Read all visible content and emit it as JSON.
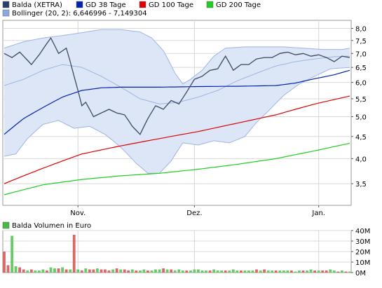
{
  "legend": [
    {
      "label": "Balda (XETRA)",
      "color": "#2a3d6b"
    },
    {
      "label": "GD 38 Tage",
      "color": "#0022aa"
    },
    {
      "label": "GD 100 Tage",
      "color": "#dd0000"
    },
    {
      "label": "GD 200 Tage",
      "color": "#22cc22"
    },
    {
      "label": "Bollinger (20, 2): 6,646996 - 7,149304",
      "color": "#8ea8e0"
    }
  ],
  "volume_label": "Balda Volumen in Euro",
  "volume_legend_color": "#44bb44",
  "colors": {
    "price": "#3a4a62",
    "ma38": "#0022aa",
    "ma100": "#dd0000",
    "ma200": "#22cc22",
    "band_fill": "#dce6f7",
    "band_line": "#9db4e3",
    "grid": "#d8d8d8",
    "vol_up": "#66cc66",
    "vol_down": "#dd6666"
  },
  "chart_data": [
    {
      "type": "line",
      "title": "",
      "x_tick_labels": [
        "Nov.",
        "Dez.",
        "Jan."
      ],
      "y_tick_labels": [
        "8,0",
        "7,5",
        "7,0",
        "6,5",
        "6,0",
        "5,5",
        "5,0",
        "4,5",
        "4,0",
        "3,5"
      ],
      "y_ticks": [
        8.0,
        7.5,
        7.0,
        6.5,
        6.0,
        5.5,
        5.0,
        4.5,
        4.0,
        3.5
      ],
      "y_scale": "log",
      "ylim": [
        3.12,
        8.35
      ],
      "x_count": 90,
      "x_tick_index": [
        19,
        49,
        81
      ],
      "grid": true,
      "legend_position": "top-left",
      "series": [
        {
          "name": "Balda (XETRA)",
          "key": "price",
          "anchors": [
            [
              0,
              7.0
            ],
            [
              2,
              6.85
            ],
            [
              4,
              7.05
            ],
            [
              6,
              6.75
            ],
            [
              7,
              6.6
            ],
            [
              9,
              6.95
            ],
            [
              12,
              7.6
            ],
            [
              14,
              7.0
            ],
            [
              16,
              7.2
            ],
            [
              18,
              6.2
            ],
            [
              20,
              5.3
            ],
            [
              21,
              5.4
            ],
            [
              23,
              5.0
            ],
            [
              25,
              5.1
            ],
            [
              27,
              5.2
            ],
            [
              29,
              5.1
            ],
            [
              31,
              5.05
            ],
            [
              33,
              4.75
            ],
            [
              35,
              4.55
            ],
            [
              37,
              4.95
            ],
            [
              39,
              5.3
            ],
            [
              41,
              5.2
            ],
            [
              43,
              5.45
            ],
            [
              45,
              5.35
            ],
            [
              47,
              5.7
            ],
            [
              49,
              6.1
            ],
            [
              51,
              6.2
            ],
            [
              53,
              6.4
            ],
            [
              55,
              6.45
            ],
            [
              57,
              6.9
            ],
            [
              59,
              6.4
            ],
            [
              61,
              6.6
            ],
            [
              63,
              6.6
            ],
            [
              65,
              6.8
            ],
            [
              67,
              6.85
            ],
            [
              69,
              6.85
            ],
            [
              71,
              7.0
            ],
            [
              73,
              7.05
            ],
            [
              75,
              6.95
            ],
            [
              77,
              7.0
            ],
            [
              79,
              6.9
            ],
            [
              81,
              6.95
            ],
            [
              83,
              6.85
            ],
            [
              85,
              6.7
            ],
            [
              87,
              6.9
            ],
            [
              89,
              6.85
            ]
          ]
        },
        {
          "name": "GD 38 Tage",
          "key": "ma38",
          "anchors": [
            [
              0,
              4.55
            ],
            [
              5,
              4.95
            ],
            [
              10,
              5.25
            ],
            [
              15,
              5.55
            ],
            [
              20,
              5.75
            ],
            [
              25,
              5.83
            ],
            [
              30,
              5.85
            ],
            [
              40,
              5.85
            ],
            [
              50,
              5.87
            ],
            [
              60,
              5.88
            ],
            [
              70,
              5.9
            ],
            [
              75,
              5.98
            ],
            [
              80,
              6.12
            ],
            [
              85,
              6.25
            ],
            [
              89,
              6.4
            ]
          ]
        },
        {
          "name": "GD 100 Tage",
          "key": "ma100",
          "anchors": [
            [
              0,
              3.5
            ],
            [
              10,
              3.8
            ],
            [
              20,
              4.1
            ],
            [
              30,
              4.28
            ],
            [
              40,
              4.45
            ],
            [
              50,
              4.62
            ],
            [
              60,
              4.83
            ],
            [
              70,
              5.05
            ],
            [
              80,
              5.35
            ],
            [
              89,
              5.58
            ]
          ]
        },
        {
          "name": "GD 200 Tage",
          "key": "ma200",
          "anchors": [
            [
              0,
              3.3
            ],
            [
              10,
              3.48
            ],
            [
              20,
              3.58
            ],
            [
              30,
              3.65
            ],
            [
              40,
              3.7
            ],
            [
              50,
              3.78
            ],
            [
              60,
              3.88
            ],
            [
              70,
              4.0
            ],
            [
              80,
              4.17
            ],
            [
              89,
              4.34
            ]
          ]
        },
        {
          "name": "Bollinger (20, 2): 6,646996 - 7,149304",
          "key": "band_upper",
          "anchors": [
            [
              0,
              7.2
            ],
            [
              5,
              7.45
            ],
            [
              10,
              7.6
            ],
            [
              15,
              7.7
            ],
            [
              20,
              7.82
            ],
            [
              25,
              7.95
            ],
            [
              30,
              7.95
            ],
            [
              35,
              7.85
            ],
            [
              38,
              7.6
            ],
            [
              41,
              7.1
            ],
            [
              44,
              6.3
            ],
            [
              46,
              5.95
            ],
            [
              48,
              6.1
            ],
            [
              51,
              6.4
            ],
            [
              54,
              6.9
            ],
            [
              57,
              7.2
            ],
            [
              62,
              7.25
            ],
            [
              67,
              7.25
            ],
            [
              72,
              7.25
            ],
            [
              77,
              7.2
            ],
            [
              82,
              7.15
            ],
            [
              87,
              7.15
            ],
            [
              89,
              7.2
            ]
          ]
        },
        {
          "name": "",
          "key": "band_lower",
          "anchors": [
            [
              0,
              4.05
            ],
            [
              3,
              4.1
            ],
            [
              6,
              4.45
            ],
            [
              10,
              4.8
            ],
            [
              14,
              4.9
            ],
            [
              18,
              4.7
            ],
            [
              22,
              4.75
            ],
            [
              26,
              4.55
            ],
            [
              30,
              4.25
            ],
            [
              34,
              3.9
            ],
            [
              37,
              3.7
            ],
            [
              40,
              3.7
            ],
            [
              43,
              3.95
            ],
            [
              46,
              4.35
            ],
            [
              50,
              4.3
            ],
            [
              54,
              4.4
            ],
            [
              58,
              4.35
            ],
            [
              62,
              4.5
            ],
            [
              65,
              4.85
            ],
            [
              68,
              5.15
            ],
            [
              72,
              5.6
            ],
            [
              76,
              5.95
            ],
            [
              80,
              6.2
            ],
            [
              84,
              6.45
            ],
            [
              89,
              6.5
            ]
          ]
        },
        {
          "name": "",
          "key": "band_mid",
          "anchors": [
            [
              0,
              5.9
            ],
            [
              5,
              6.1
            ],
            [
              10,
              6.4
            ],
            [
              15,
              6.6
            ],
            [
              20,
              6.5
            ],
            [
              25,
              6.2
            ],
            [
              30,
              5.85
            ],
            [
              35,
              5.5
            ],
            [
              40,
              5.35
            ],
            [
              45,
              5.4
            ],
            [
              50,
              5.55
            ],
            [
              55,
              5.75
            ],
            [
              60,
              6.05
            ],
            [
              65,
              6.3
            ],
            [
              70,
              6.55
            ],
            [
              75,
              6.7
            ],
            [
              80,
              6.8
            ],
            [
              85,
              6.88
            ],
            [
              89,
              6.9
            ]
          ]
        }
      ]
    },
    {
      "type": "bar",
      "title": "",
      "y_tick_labels": [
        "40M",
        "30M",
        "20M",
        "10M",
        "0M"
      ],
      "y_ticks": [
        40,
        30,
        20,
        10,
        0
      ],
      "ylim": [
        0,
        40
      ],
      "unit": "Mio. Euro",
      "values": [
        20,
        7,
        35,
        6,
        5,
        3,
        2,
        3,
        2,
        2,
        3,
        2,
        5,
        4,
        4,
        5,
        3,
        3,
        36,
        3,
        2,
        4,
        3,
        3,
        4,
        3,
        3,
        2,
        3,
        4,
        3,
        3,
        2,
        3,
        2,
        2,
        3,
        2,
        2,
        3,
        3,
        4,
        3,
        3,
        2,
        3,
        2,
        2,
        2,
        3,
        3,
        2,
        2,
        2,
        3,
        2,
        2,
        2,
        2,
        3,
        2,
        2,
        2,
        2,
        2,
        3,
        2,
        3,
        2,
        2,
        2,
        2,
        2,
        2,
        2,
        1,
        2,
        2,
        2,
        3,
        2,
        2,
        2,
        2,
        3,
        2,
        1,
        2,
        1,
        1
      ],
      "up": [
        0,
        0,
        1,
        1,
        0,
        0,
        1,
        0,
        1,
        1,
        1,
        0,
        1,
        1,
        0,
        1,
        0,
        1,
        0,
        1,
        0,
        1,
        0,
        0,
        1,
        0,
        0,
        0,
        1,
        0,
        1,
        0,
        0,
        1,
        0,
        1,
        1,
        0,
        1,
        1,
        1,
        0,
        1,
        0,
        1,
        1,
        1,
        0,
        1,
        1,
        1,
        1,
        1,
        0,
        1,
        1,
        1,
        0,
        1,
        1,
        1,
        0,
        1,
        1,
        1,
        0,
        1,
        0,
        1,
        1,
        0,
        1,
        1,
        1,
        0,
        1,
        1,
        0,
        1,
        1,
        0,
        1,
        0,
        0,
        1,
        1,
        0,
        1,
        0,
        1
      ]
    }
  ]
}
